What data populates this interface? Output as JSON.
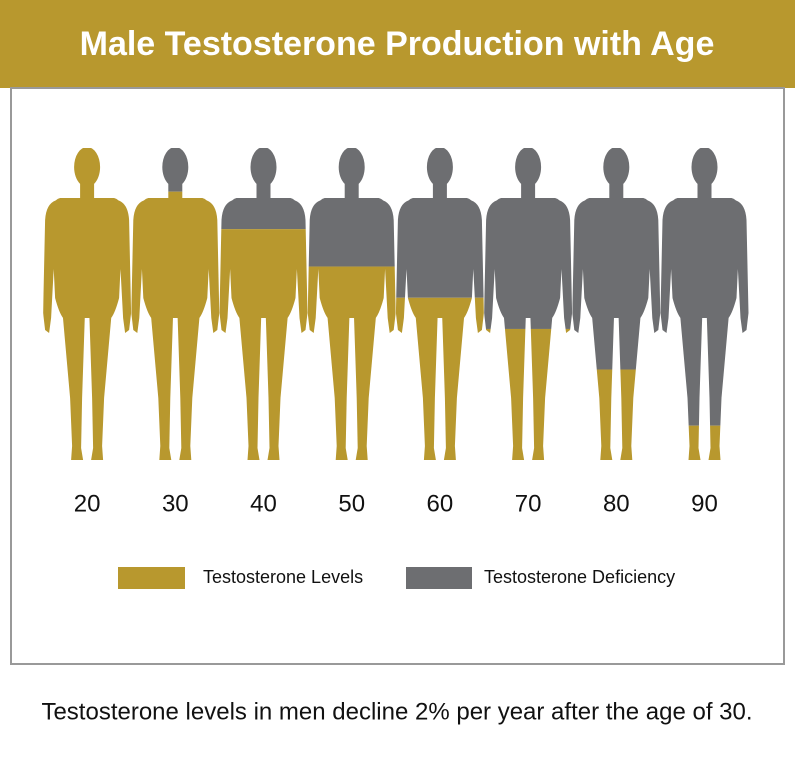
{
  "chart_data": {
    "type": "pictogram",
    "title": "Male Testosterone Production with Age",
    "categories": [
      "20",
      "30",
      "40",
      "50",
      "60",
      "70",
      "80",
      "90"
    ],
    "series": [
      {
        "name": "Testosterone Levels",
        "color": "#b8982e",
        "values": [
          100,
          86,
          74,
          62,
          52,
          42,
          29,
          11
        ]
      },
      {
        "name": "Testosterone Deficiency",
        "color": "#6d6e71",
        "values": [
          0,
          14,
          26,
          38,
          48,
          58,
          71,
          89
        ]
      }
    ],
    "ylim": [
      0,
      100
    ],
    "caption": "Testosterone levels in men decline 2% per year after the age of 30."
  }
}
